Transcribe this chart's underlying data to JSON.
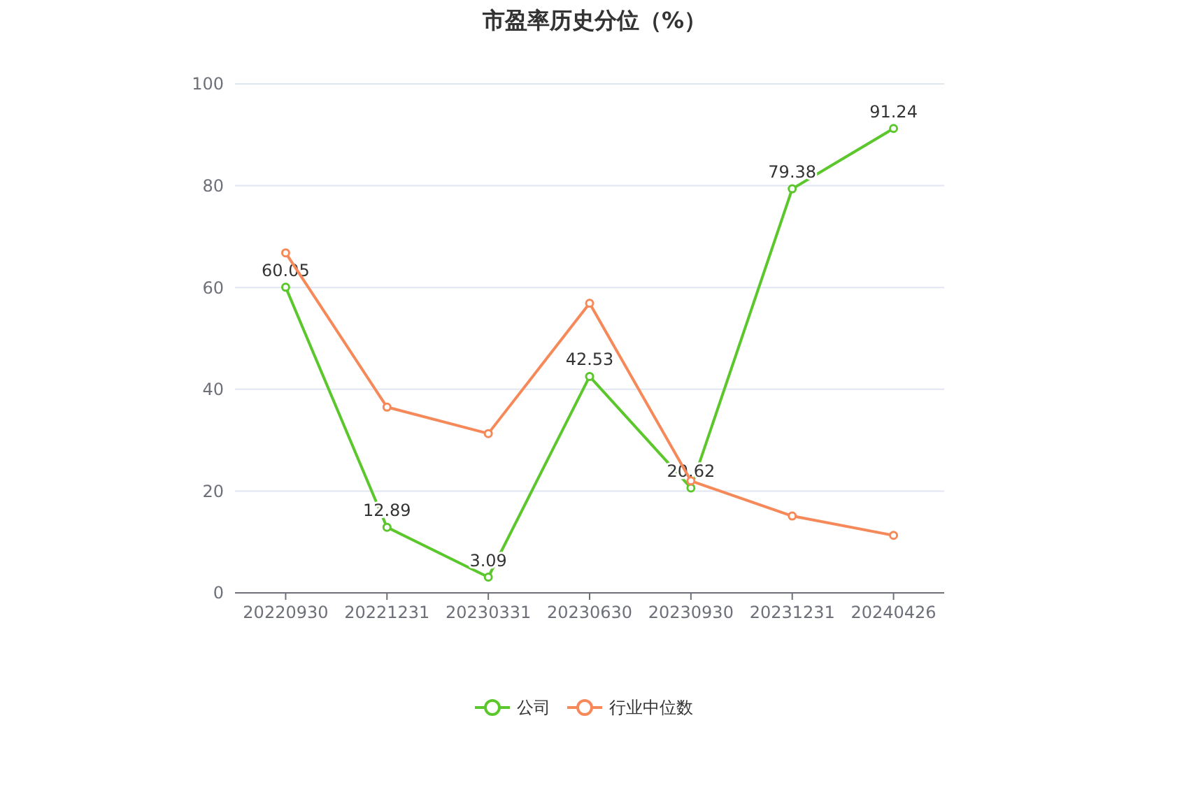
{
  "chart_data": {
    "type": "line",
    "title": "市盈率历史分位（%）",
    "categories": [
      "20220930",
      "20221231",
      "20230331",
      "20230630",
      "20230930",
      "20231231",
      "20240426"
    ],
    "series": [
      {
        "name": "公司",
        "color": "#5cc72d",
        "values": [
          60.05,
          12.89,
          3.09,
          42.53,
          20.62,
          79.38,
          91.24
        ],
        "value_labels": [
          "60.05",
          "12.89",
          "3.09",
          "42.53",
          "20.62",
          "79.38",
          "91.24"
        ]
      },
      {
        "name": "行业中位数",
        "color": "#f5895a",
        "values": [
          66.8,
          36.5,
          31.3,
          56.9,
          22,
          15.1,
          11.3
        ]
      }
    ],
    "ylim": [
      0,
      100
    ],
    "yticks": [
      0,
      20,
      40,
      60,
      80,
      100
    ],
    "grid": "y",
    "legend": "bottom",
    "marker": "circle",
    "line_style": "solid"
  }
}
